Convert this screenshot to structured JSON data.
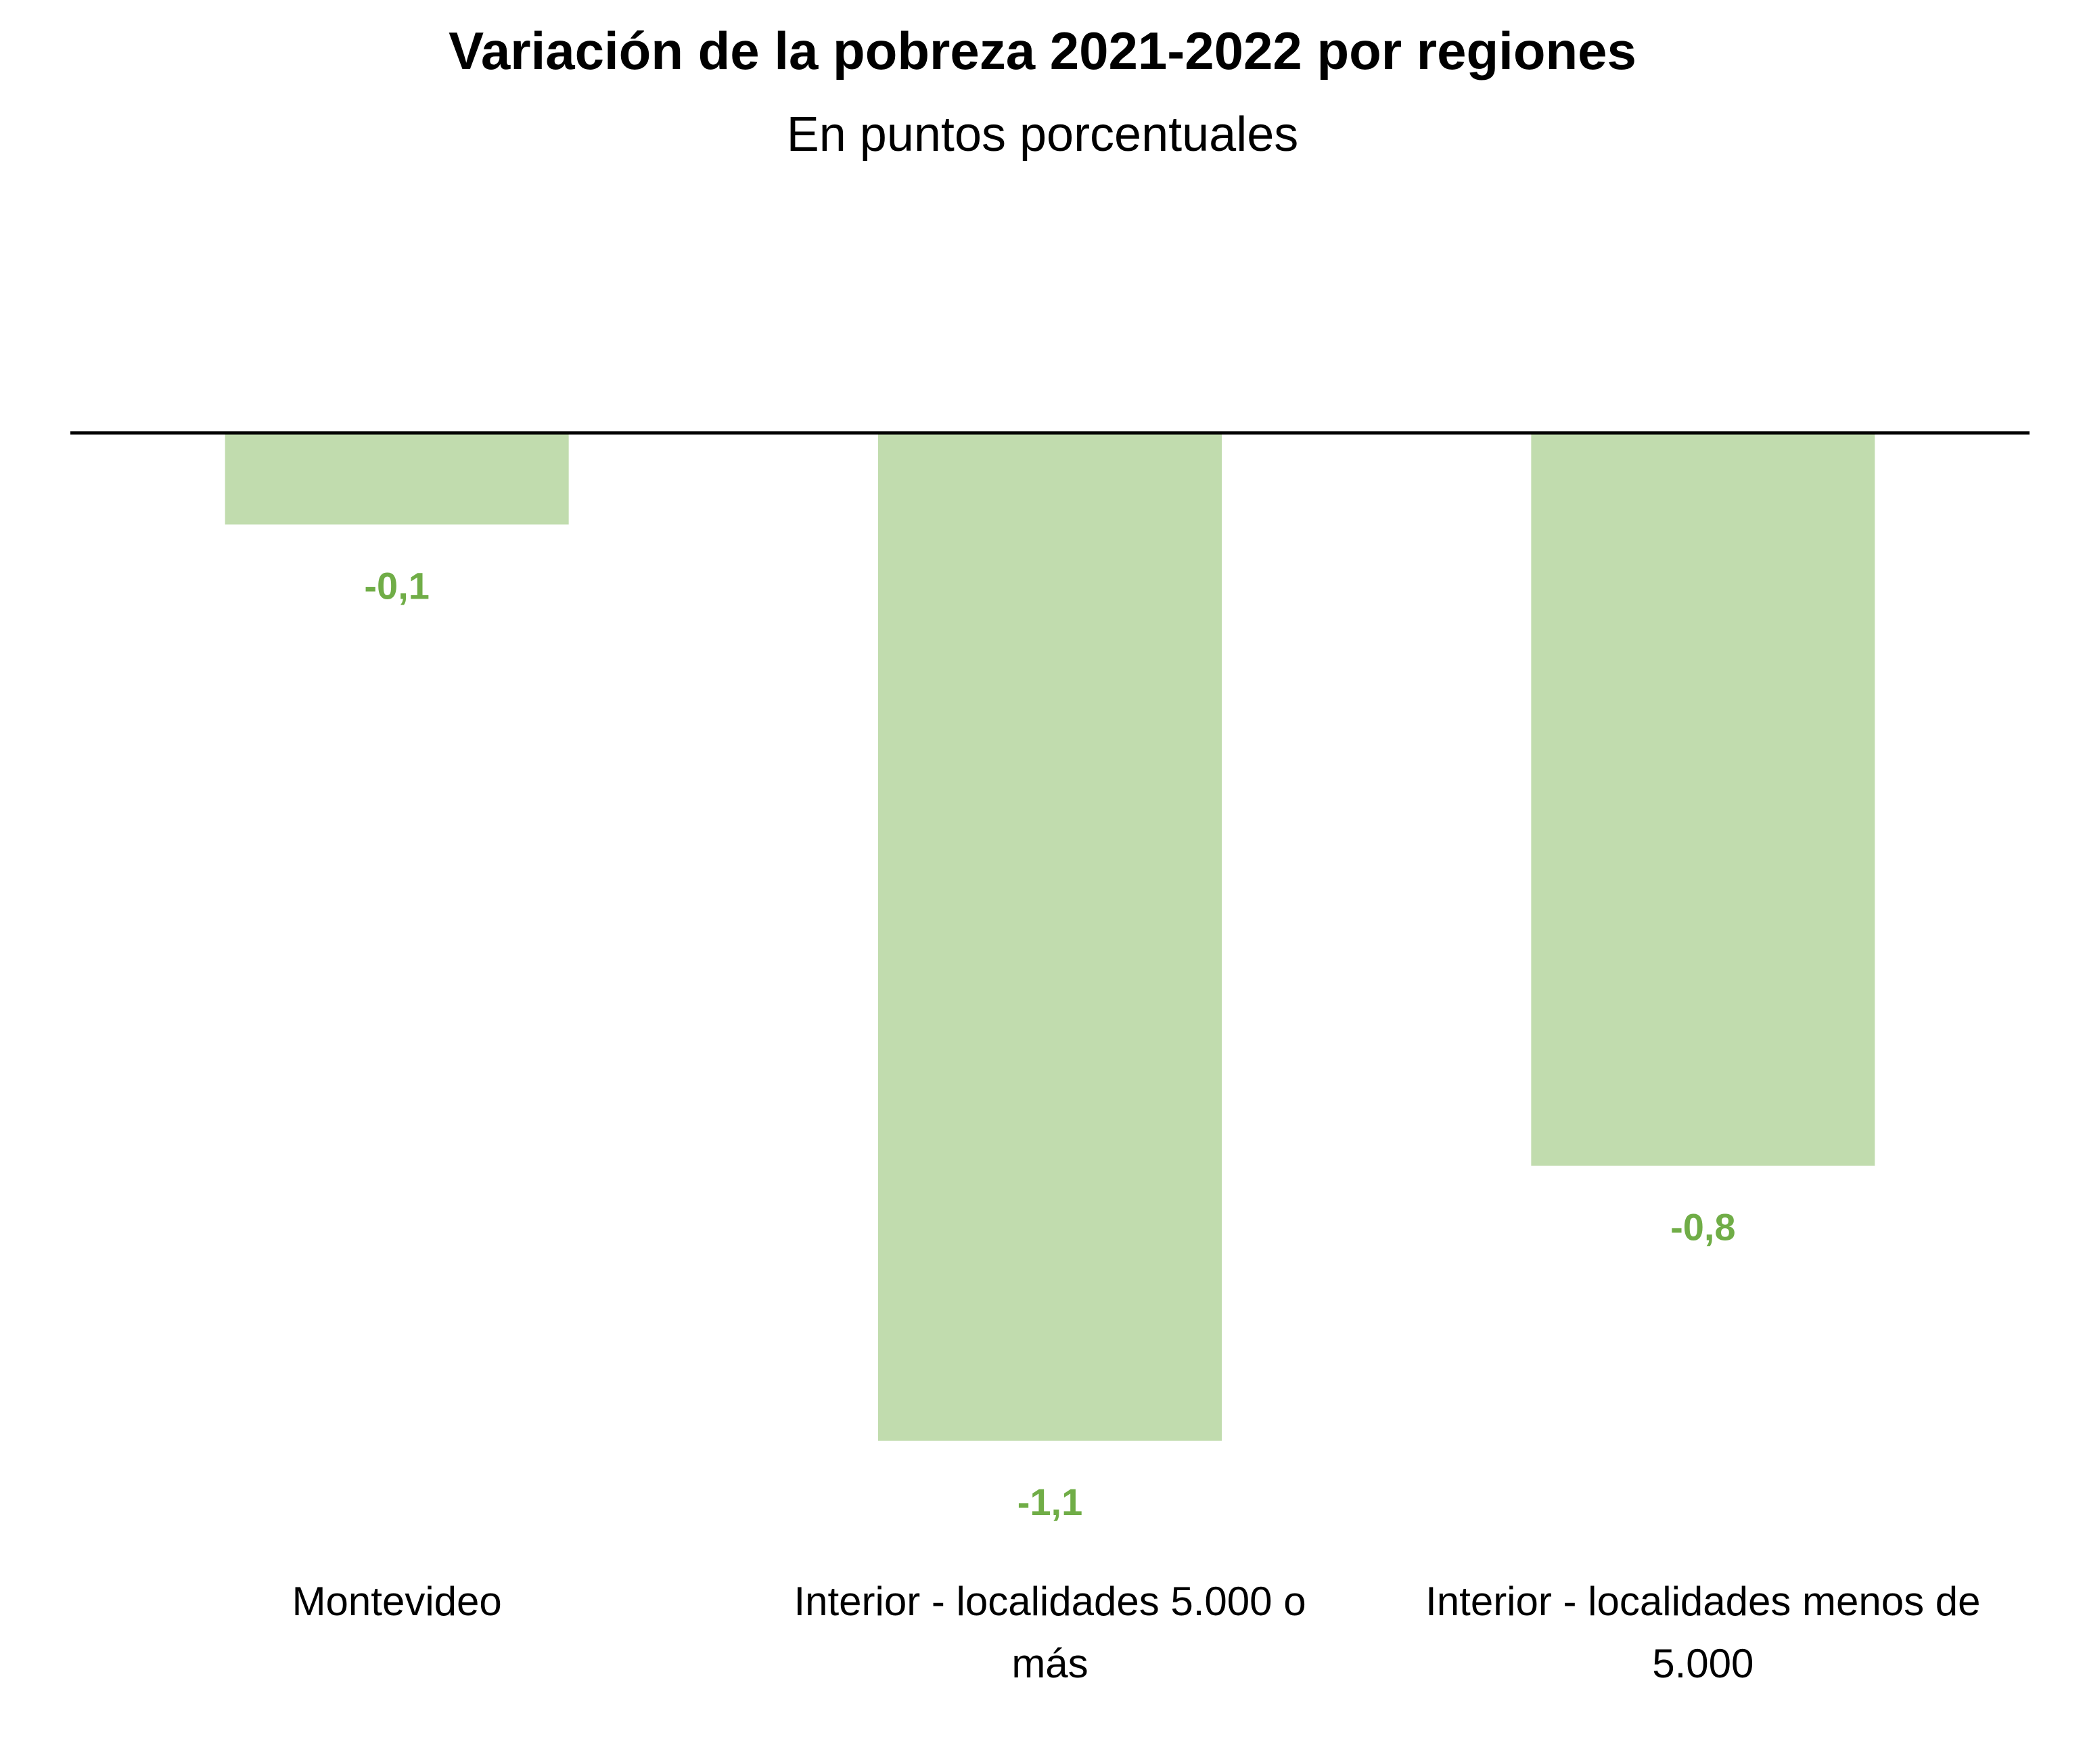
{
  "chart_data": {
    "type": "bar",
    "title": "Variación de la pobreza 2021-2022 por regiones",
    "subtitle": "En puntos porcentuales",
    "categories": [
      [
        "Montevideo"
      ],
      [
        "Interior - localidades 5.000 o",
        "más"
      ],
      [
        "Interior - localidades menos de",
        "5.000"
      ]
    ],
    "values": [
      -0.1,
      -1.1,
      -0.8
    ],
    "data_labels": [
      "-0,1",
      "-1,1",
      "-0,8"
    ],
    "ylim": [
      -1.1,
      0
    ],
    "grid": false,
    "legend": "none",
    "colors": {
      "bar": "#C1DCAE",
      "data_label": "#70AD47",
      "axis": "#000000"
    }
  }
}
